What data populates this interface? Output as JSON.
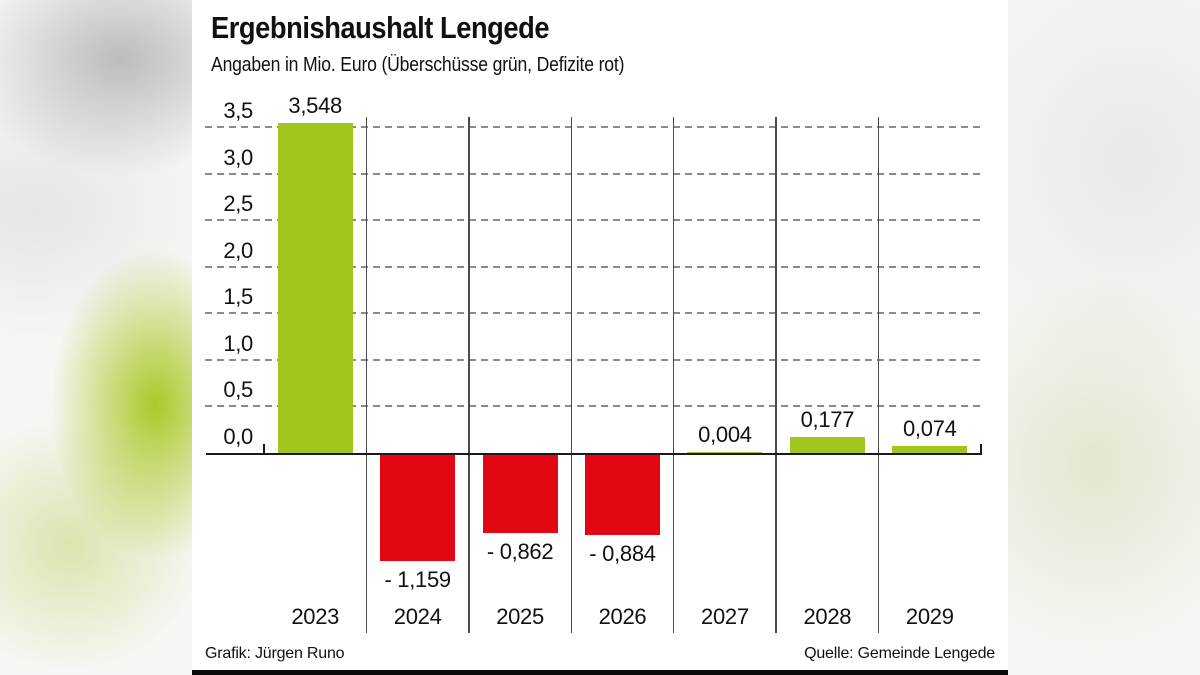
{
  "title": "Ergebnishaushalt Lengede",
  "subtitle": "Angaben in Mio. Euro (Überschüsse grün, Defizite rot)",
  "credit_left": "Grafik: Jürgen Runo",
  "credit_right": "Quelle: Gemeinde Lengede",
  "colors": {
    "positive": "#a3c61e",
    "negative": "#e30613",
    "axis": "#1a1a1a",
    "grid": "#8a8a8a"
  },
  "chart_data": {
    "type": "bar",
    "title": "Ergebnishaushalt Lengede",
    "subtitle": "Angaben in Mio. Euro (Überschüsse grün, Defizite rot)",
    "categories": [
      "2023",
      "2024",
      "2025",
      "2026",
      "2027",
      "2028",
      "2029"
    ],
    "values": [
      3.548,
      -1.159,
      -0.862,
      -0.884,
      0.004,
      0.177,
      0.074
    ],
    "value_labels": [
      "3,548",
      "- 1,159",
      "- 0,862",
      "- 0,884",
      "0,004",
      "0,177",
      "0,074"
    ],
    "series_unit": "Mio. Euro",
    "positive_color_meaning": "Überschüsse (grün)",
    "negative_color_meaning": "Defizite (rot)",
    "yticks": [
      "3,5",
      "3,0",
      "2,5",
      "2,0",
      "1,5",
      "1,0",
      "0,5",
      "0,0"
    ],
    "ytick_values": [
      3.5,
      3.0,
      2.5,
      2.0,
      1.5,
      1.0,
      0.5,
      0.0
    ],
    "ylim": [
      -1.2,
      3.55
    ],
    "xlabel": "",
    "ylabel": "Mio. Euro",
    "grid": "dashed horizontal",
    "legend_position": "none"
  }
}
